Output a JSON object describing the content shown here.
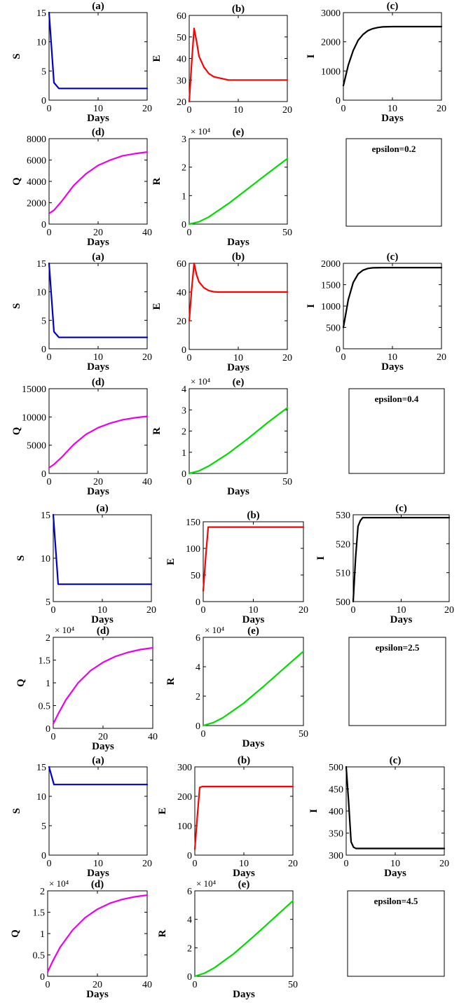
{
  "chart_data": [
    {
      "type": "line",
      "title": "(a)",
      "xlabel": "Days",
      "ylabel": "S",
      "xlim": [
        0,
        20
      ],
      "ylim": [
        0,
        15
      ],
      "xticks": [
        0,
        10,
        20
      ],
      "yticks": [
        0,
        5,
        10,
        15
      ],
      "color": "#0000cc",
      "series": [
        {
          "x": [
            0,
            0.5,
            1,
            2,
            3,
            5,
            10,
            20
          ],
          "y": [
            15,
            9,
            3,
            2,
            2,
            2,
            2,
            2
          ]
        }
      ]
    },
    {
      "type": "line",
      "title": "(b)",
      "xlabel": "",
      "ylabel": "E",
      "xlim": [
        0,
        20
      ],
      "ylim": [
        20,
        60
      ],
      "xticks": [
        0,
        10,
        20
      ],
      "yticks": [
        20,
        30,
        40,
        50,
        60
      ],
      "color": "#ff0000",
      "series": [
        {
          "x": [
            0,
            0.5,
            1,
            1.5,
            2,
            3,
            4,
            5,
            6,
            7,
            8,
            10,
            15,
            20
          ],
          "y": [
            20,
            38,
            54,
            48,
            41,
            36,
            33,
            31.5,
            31,
            30.5,
            30,
            30,
            30,
            30
          ]
        }
      ]
    },
    {
      "type": "line",
      "title": "(c)",
      "xlabel": "Days",
      "ylabel": "I",
      "xlim": [
        0,
        20
      ],
      "ylim": [
        0,
        3000
      ],
      "xticks": [
        0,
        10,
        20
      ],
      "yticks": [
        0,
        1000,
        2000,
        3000
      ],
      "color": "#000000",
      "series": [
        {
          "x": [
            0,
            1,
            2,
            3,
            4,
            5,
            6,
            7,
            8,
            10,
            12,
            15,
            20
          ],
          "y": [
            500,
            1200,
            1700,
            2050,
            2250,
            2380,
            2450,
            2490,
            2510,
            2520,
            2520,
            2520,
            2520
          ]
        }
      ]
    },
    {
      "type": "line",
      "title": "(d)",
      "xlabel": "Days",
      "ylabel": "Q",
      "xlim": [
        0,
        40
      ],
      "ylim": [
        0,
        8000
      ],
      "xticks": [
        0,
        20,
        40
      ],
      "yticks": [
        0,
        2000,
        4000,
        6000,
        8000
      ],
      "color": "#ee00ee",
      "series": [
        {
          "x": [
            0,
            2,
            5,
            10,
            15,
            20,
            25,
            30,
            35,
            40
          ],
          "y": [
            1000,
            1300,
            2100,
            3600,
            4700,
            5500,
            6000,
            6400,
            6600,
            6750
          ]
        }
      ]
    },
    {
      "type": "line",
      "title": "(e)",
      "xlabel": "Days",
      "ylabel": "R",
      "xlim": [
        0,
        50
      ],
      "ylim": [
        0,
        3
      ],
      "xticks": [
        0,
        50
      ],
      "yticks": [
        0,
        1,
        2,
        3
      ],
      "exponent": "× 10⁴",
      "color": "#00dd00",
      "series": [
        {
          "x": [
            0,
            5,
            10,
            20,
            30,
            40,
            50
          ],
          "y": [
            0,
            0.08,
            0.25,
            0.72,
            1.25,
            1.78,
            2.3
          ]
        }
      ]
    },
    {
      "type": "line",
      "title": "(a)",
      "xlabel": "Days",
      "ylabel": "S",
      "xlim": [
        0,
        20
      ],
      "ylim": [
        0,
        15
      ],
      "xticks": [
        0,
        10,
        20
      ],
      "yticks": [
        0,
        5,
        10,
        15
      ],
      "color": "#0000cc",
      "series": [
        {
          "x": [
            0,
            0.5,
            1,
            2,
            3,
            5,
            10,
            20
          ],
          "y": [
            15,
            9,
            3,
            2,
            2,
            2,
            2,
            2
          ]
        }
      ]
    },
    {
      "type": "line",
      "title": "(b)",
      "xlabel": "Days",
      "ylabel": "E",
      "xlim": [
        0,
        20
      ],
      "ylim": [
        0,
        60
      ],
      "xticks": [
        0,
        10,
        20
      ],
      "yticks": [
        0,
        20,
        40,
        60
      ],
      "color": "#ff0000",
      "series": [
        {
          "x": [
            0,
            0.5,
            1,
            1.5,
            2,
            3,
            4,
            5,
            6,
            10,
            15,
            20
          ],
          "y": [
            20,
            42,
            60,
            52,
            47,
            43,
            41,
            40.2,
            40,
            40,
            40,
            40
          ]
        }
      ]
    },
    {
      "type": "line",
      "title": "(c)",
      "xlabel": "Days",
      "ylabel": "I",
      "xlim": [
        0,
        20
      ],
      "ylim": [
        0,
        2000
      ],
      "xticks": [
        0,
        10,
        20
      ],
      "yticks": [
        0,
        500,
        1000,
        1500,
        2000
      ],
      "color": "#000000",
      "series": [
        {
          "x": [
            0,
            1,
            2,
            3,
            4,
            5,
            6,
            8,
            10,
            15,
            20
          ],
          "y": [
            500,
            1150,
            1550,
            1750,
            1840,
            1880,
            1895,
            1900,
            1900,
            1900,
            1900
          ]
        }
      ]
    },
    {
      "type": "line",
      "title": "(d)",
      "xlabel": "Days",
      "ylabel": "Q",
      "xlim": [
        0,
        40
      ],
      "ylim": [
        0,
        15000
      ],
      "xticks": [
        0,
        20,
        40
      ],
      "yticks": [
        0,
        5000,
        10000,
        15000
      ],
      "color": "#ee00ee",
      "series": [
        {
          "x": [
            0,
            2,
            5,
            10,
            15,
            20,
            25,
            30,
            35,
            40
          ],
          "y": [
            1000,
            1600,
            2800,
            5100,
            6900,
            8100,
            8900,
            9500,
            9850,
            10100
          ]
        }
      ]
    },
    {
      "type": "line",
      "title": "(e)",
      "xlabel": "Days",
      "ylabel": "R",
      "xlim": [
        0,
        50
      ],
      "ylim": [
        0,
        4
      ],
      "xticks": [
        0,
        50
      ],
      "yticks": [
        0,
        1,
        2,
        3,
        4
      ],
      "exponent": "× 10⁴",
      "color": "#00dd00",
      "series": [
        {
          "x": [
            0,
            5,
            10,
            20,
            30,
            40,
            50
          ],
          "y": [
            0,
            0.12,
            0.35,
            0.95,
            1.65,
            2.4,
            3.1
          ]
        }
      ]
    },
    {
      "type": "line",
      "title": "(a)",
      "xlabel": "Days",
      "ylabel": "S",
      "xlim": [
        0,
        20
      ],
      "ylim": [
        5,
        15
      ],
      "xticks": [
        0,
        10,
        20
      ],
      "yticks": [
        5,
        10,
        15
      ],
      "color": "#0000cc",
      "series": [
        {
          "x": [
            0,
            0.5,
            1,
            2,
            5,
            10,
            20
          ],
          "y": [
            15,
            11,
            7,
            7,
            7,
            7,
            7
          ]
        }
      ]
    },
    {
      "type": "line",
      "title": "(b)",
      "xlabel": "Days",
      "ylabel": "E",
      "xlim": [
        0,
        20
      ],
      "ylim": [
        0,
        150
      ],
      "xticks": [
        0,
        10,
        20
      ],
      "yticks": [
        0,
        50,
        100,
        150
      ],
      "color": "#ff0000",
      "series": [
        {
          "x": [
            0,
            0.5,
            1,
            1.5,
            2,
            5,
            10,
            20
          ],
          "y": [
            20,
            85,
            140,
            140,
            140,
            140,
            140,
            140
          ]
        }
      ]
    },
    {
      "type": "line",
      "title": "(c)",
      "xlabel": "Days",
      "ylabel": "I",
      "xlim": [
        0,
        20
      ],
      "ylim": [
        500,
        530
      ],
      "xticks": [
        0,
        10,
        20
      ],
      "yticks": [
        500,
        510,
        520,
        530
      ],
      "color": "#000000",
      "series": [
        {
          "x": [
            0,
            0.5,
            1,
            1.5,
            2,
            3,
            5,
            10,
            20
          ],
          "y": [
            500,
            515,
            526,
            528,
            529,
            529,
            529,
            529,
            529
          ]
        }
      ]
    },
    {
      "type": "line",
      "title": "(d)",
      "xlabel": "Days",
      "ylabel": "Q",
      "xlim": [
        0,
        40
      ],
      "ylim": [
        0,
        2
      ],
      "xticks": [
        0,
        20,
        40
      ],
      "yticks": [
        0,
        0.5,
        1,
        1.5,
        2
      ],
      "exponent": "× 10⁴",
      "color": "#ee00ee",
      "series": [
        {
          "x": [
            0,
            2,
            5,
            10,
            15,
            20,
            25,
            30,
            35,
            40
          ],
          "y": [
            0.1,
            0.32,
            0.62,
            1.0,
            1.27,
            1.45,
            1.58,
            1.67,
            1.73,
            1.77
          ]
        }
      ]
    },
    {
      "type": "line",
      "title": "(e)",
      "xlabel": "Days",
      "ylabel": "R",
      "xlim": [
        0,
        50
      ],
      "ylim": [
        0,
        6
      ],
      "xticks": [
        0,
        50
      ],
      "yticks": [
        0,
        2,
        4,
        6
      ],
      "exponent": "× 10⁴",
      "color": "#00dd00",
      "series": [
        {
          "x": [
            0,
            5,
            10,
            20,
            30,
            40,
            50
          ],
          "y": [
            0,
            0.2,
            0.55,
            1.5,
            2.65,
            3.85,
            5.05
          ]
        }
      ]
    },
    {
      "type": "line",
      "title": "(a)",
      "xlabel": "Days",
      "ylabel": "S",
      "xlim": [
        0,
        20
      ],
      "ylim": [
        0,
        15
      ],
      "xticks": [
        0,
        10,
        20
      ],
      "yticks": [
        0,
        5,
        10,
        15
      ],
      "color": "#0000cc",
      "series": [
        {
          "x": [
            0,
            0.5,
            1,
            2,
            5,
            10,
            20
          ],
          "y": [
            15,
            13.5,
            12,
            12,
            12,
            12,
            12
          ]
        }
      ]
    },
    {
      "type": "line",
      "title": "(b)",
      "xlabel": "Days",
      "ylabel": "E",
      "xlim": [
        0,
        20
      ],
      "ylim": [
        0,
        300
      ],
      "xticks": [
        0,
        10,
        20
      ],
      "yticks": [
        0,
        100,
        200,
        300
      ],
      "color": "#ff0000",
      "series": [
        {
          "x": [
            0,
            0.5,
            1,
            1.5,
            2,
            5,
            10,
            20
          ],
          "y": [
            20,
            130,
            230,
            233,
            233,
            233,
            233,
            233
          ]
        }
      ]
    },
    {
      "type": "line",
      "title": "(c)",
      "xlabel": "Days",
      "ylabel": "I",
      "xlim": [
        0,
        20
      ],
      "ylim": [
        300,
        500
      ],
      "xticks": [
        0,
        10,
        20
      ],
      "yticks": [
        300,
        350,
        400,
        450,
        500
      ],
      "color": "#000000",
      "series": [
        {
          "x": [
            0,
            0.5,
            1,
            1.5,
            2,
            5,
            10,
            20
          ],
          "y": [
            500,
            420,
            330,
            318,
            315,
            315,
            315,
            315
          ]
        }
      ]
    },
    {
      "type": "line",
      "title": "(d)",
      "xlabel": "Days",
      "ylabel": "Q",
      "xlim": [
        0,
        40
      ],
      "ylim": [
        0,
        2
      ],
      "xticks": [
        0,
        20,
        40
      ],
      "yticks": [
        0,
        0.5,
        1,
        1.5,
        2
      ],
      "exponent": "× 10⁴",
      "color": "#ee00ee",
      "series": [
        {
          "x": [
            0,
            2,
            5,
            10,
            15,
            20,
            25,
            30,
            35,
            40
          ],
          "y": [
            0.1,
            0.35,
            0.68,
            1.08,
            1.37,
            1.57,
            1.71,
            1.8,
            1.86,
            1.9
          ]
        }
      ]
    },
    {
      "type": "line",
      "title": "(e)",
      "xlabel": "Days",
      "ylabel": "R",
      "xlim": [
        0,
        50
      ],
      "ylim": [
        0,
        6
      ],
      "xticks": [
        0,
        50
      ],
      "yticks": [
        0,
        2,
        4,
        6
      ],
      "exponent": "× 10⁴",
      "color": "#00dd00",
      "series": [
        {
          "x": [
            0,
            5,
            10,
            20,
            30,
            40,
            50
          ],
          "y": [
            0,
            0.22,
            0.6,
            1.6,
            2.8,
            4.05,
            5.3
          ]
        }
      ]
    }
  ],
  "legend_boxes": [
    {
      "text": "epsilon=0.2"
    },
    {
      "text": "epsilon=0.4"
    },
    {
      "text": "epsilon=2.5"
    },
    {
      "text": "epsilon=4.5"
    }
  ]
}
